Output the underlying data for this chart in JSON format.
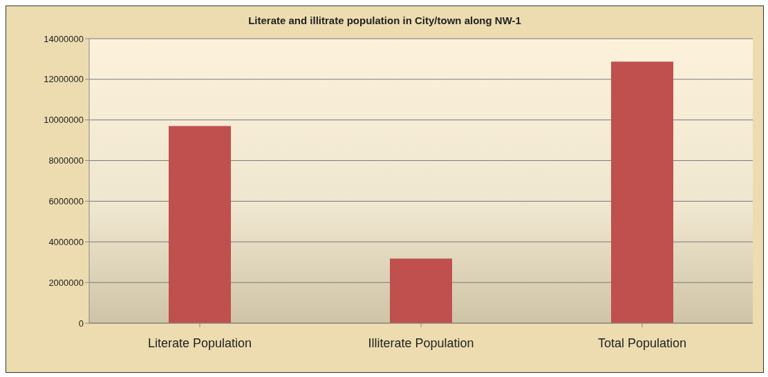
{
  "chart_data": {
    "type": "bar",
    "title": "Literate and illitrate population in City/town along NW-1",
    "categories": [
      "Literate Population",
      "Illiterate Population",
      "Total Population"
    ],
    "values": [
      9700000,
      3180000,
      12870000
    ],
    "color": "#c0504d",
    "ylim": [
      0,
      14000000
    ],
    "yticks": [
      0,
      2000000,
      4000000,
      6000000,
      8000000,
      10000000,
      12000000,
      14000000
    ],
    "grid": "y"
  }
}
